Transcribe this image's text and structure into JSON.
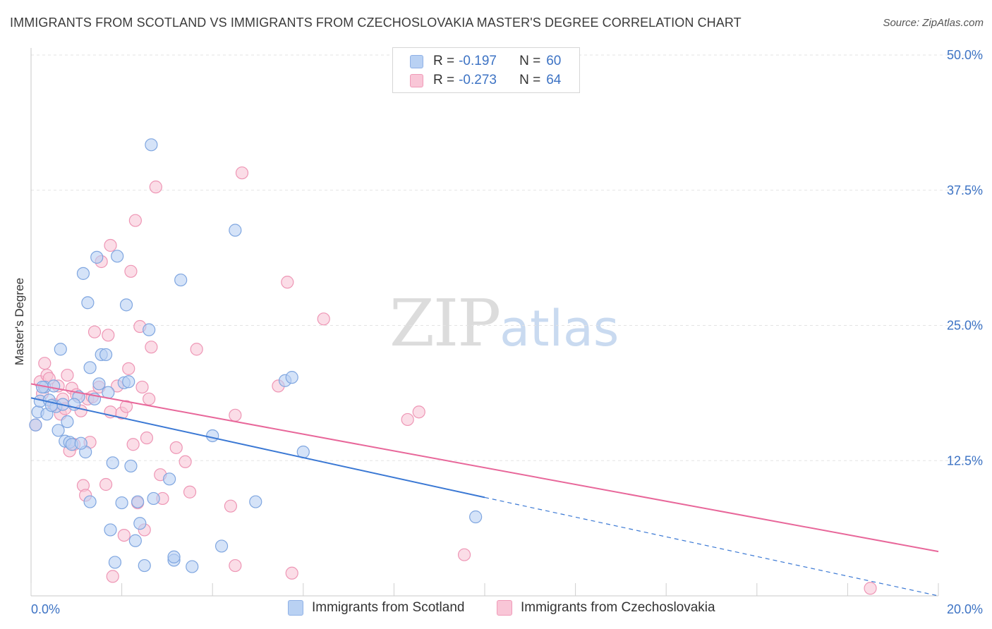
{
  "title": "IMMIGRANTS FROM SCOTLAND VS IMMIGRANTS FROM CZECHOSLOVAKIA MASTER'S DEGREE CORRELATION CHART",
  "source": "Source: ZipAtlas.com",
  "watermark": {
    "zip": "ZIP",
    "atlas": "atlas"
  },
  "legend": {
    "rows": [
      {
        "r_label": "R =",
        "r_value": "-0.197",
        "n_label": "N =",
        "n_value": "60"
      },
      {
        "r_label": "R =",
        "r_value": "-0.273",
        "n_label": "N =",
        "n_value": "64"
      }
    ]
  },
  "colors": {
    "blue_fill": "#b9d1f3",
    "blue_stroke": "#7fa6e0",
    "blue_line": "#3a78d4",
    "pink_fill": "#f9c6d7",
    "pink_stroke": "#ee96b5",
    "pink_line": "#e8679a",
    "grid": "#e3e3e3",
    "tick_label": "#3d73c4"
  },
  "chart_data": {
    "type": "scatter",
    "title": "IMMIGRANTS FROM SCOTLAND VS IMMIGRANTS FROM CZECHOSLOVAKIA MASTER'S DEGREE CORRELATION CHART",
    "xlabel": "",
    "ylabel": "Master's Degree",
    "xlim": [
      0,
      20
    ],
    "ylim": [
      0,
      50
    ],
    "x_tick_labels": [
      {
        "value": 0,
        "label": "0.0%"
      },
      {
        "value": 20,
        "label": "20.0%"
      }
    ],
    "y_tick_labels": [
      {
        "value": 12.5,
        "label": "12.5%"
      },
      {
        "value": 25,
        "label": "25.0%"
      },
      {
        "value": 37.5,
        "label": "37.5%"
      },
      {
        "value": 50,
        "label": "50.0%"
      }
    ],
    "grid": true,
    "legend_position": "top-center",
    "series": [
      {
        "name": "Immigrants from Scotland",
        "color": "blue",
        "points": [
          [
            0.1,
            15.8
          ],
          [
            0.15,
            17.0
          ],
          [
            0.2,
            18.0
          ],
          [
            0.3,
            19.3
          ],
          [
            0.35,
            16.8
          ],
          [
            0.4,
            18.1
          ],
          [
            0.5,
            19.4
          ],
          [
            0.55,
            17.5
          ],
          [
            0.6,
            15.3
          ],
          [
            0.65,
            22.8
          ],
          [
            0.7,
            17.7
          ],
          [
            0.75,
            14.3
          ],
          [
            0.8,
            16.1
          ],
          [
            0.85,
            14.2
          ],
          [
            0.9,
            14.0
          ],
          [
            1.05,
            18.4
          ],
          [
            1.15,
            29.8
          ],
          [
            1.2,
            13.3
          ],
          [
            1.25,
            27.1
          ],
          [
            1.3,
            21.1
          ],
          [
            1.3,
            8.7
          ],
          [
            1.4,
            18.2
          ],
          [
            1.5,
            19.6
          ],
          [
            1.45,
            31.3
          ],
          [
            1.55,
            22.3
          ],
          [
            1.65,
            22.3
          ],
          [
            1.7,
            18.8
          ],
          [
            1.75,
            6.1
          ],
          [
            1.8,
            12.3
          ],
          [
            1.85,
            3.1
          ],
          [
            1.9,
            31.4
          ],
          [
            2.0,
            8.6
          ],
          [
            2.05,
            19.7
          ],
          [
            2.1,
            26.9
          ],
          [
            2.2,
            12.0
          ],
          [
            2.3,
            5.1
          ],
          [
            2.35,
            8.7
          ],
          [
            2.4,
            6.7
          ],
          [
            2.5,
            2.8
          ],
          [
            2.6,
            24.6
          ],
          [
            2.65,
            41.7
          ],
          [
            2.7,
            9.0
          ],
          [
            3.05,
            10.8
          ],
          [
            3.15,
            3.3
          ],
          [
            3.15,
            3.6
          ],
          [
            3.3,
            29.2
          ],
          [
            3.55,
            2.7
          ],
          [
            4.0,
            14.8
          ],
          [
            4.2,
            4.6
          ],
          [
            4.5,
            33.8
          ],
          [
            4.95,
            8.7
          ],
          [
            5.6,
            19.9
          ],
          [
            5.75,
            20.2
          ],
          [
            6.0,
            13.3
          ],
          [
            9.8,
            7.3
          ],
          [
            0.25,
            19.3
          ],
          [
            0.45,
            17.6
          ],
          [
            1.1,
            14.1
          ],
          [
            0.95,
            17.7
          ],
          [
            2.15,
            19.8
          ]
        ]
      },
      {
        "name": "Immigrants from Czechoslovakia",
        "color": "pink",
        "points": [
          [
            0.1,
            15.8
          ],
          [
            0.2,
            19.8
          ],
          [
            0.25,
            18.7
          ],
          [
            0.3,
            21.5
          ],
          [
            0.35,
            20.4
          ],
          [
            0.4,
            20.1
          ],
          [
            0.5,
            17.7
          ],
          [
            0.6,
            19.4
          ],
          [
            0.65,
            16.8
          ],
          [
            0.7,
            18.2
          ],
          [
            0.75,
            17.3
          ],
          [
            0.8,
            20.4
          ],
          [
            0.85,
            13.4
          ],
          [
            0.9,
            19.2
          ],
          [
            0.95,
            14.0
          ],
          [
            1.0,
            18.6
          ],
          [
            1.1,
            17.1
          ],
          [
            1.15,
            10.2
          ],
          [
            1.2,
            9.3
          ],
          [
            1.25,
            18.2
          ],
          [
            1.3,
            14.2
          ],
          [
            1.35,
            18.4
          ],
          [
            1.4,
            24.4
          ],
          [
            1.5,
            19.3
          ],
          [
            1.55,
            30.9
          ],
          [
            1.65,
            10.3
          ],
          [
            1.7,
            24.1
          ],
          [
            1.75,
            17.0
          ],
          [
            1.75,
            32.4
          ],
          [
            1.8,
            1.8
          ],
          [
            1.9,
            19.4
          ],
          [
            2.0,
            16.9
          ],
          [
            2.05,
            5.6
          ],
          [
            2.1,
            17.5
          ],
          [
            2.15,
            21.0
          ],
          [
            2.2,
            30.0
          ],
          [
            2.25,
            14.0
          ],
          [
            2.3,
            34.7
          ],
          [
            2.35,
            8.6
          ],
          [
            2.4,
            24.9
          ],
          [
            2.45,
            19.3
          ],
          [
            2.5,
            6.1
          ],
          [
            2.55,
            14.6
          ],
          [
            2.6,
            18.2
          ],
          [
            2.65,
            23.0
          ],
          [
            2.75,
            37.8
          ],
          [
            2.85,
            11.2
          ],
          [
            2.9,
            9.0
          ],
          [
            3.2,
            13.7
          ],
          [
            3.4,
            12.4
          ],
          [
            3.5,
            9.6
          ],
          [
            3.65,
            22.8
          ],
          [
            4.4,
            8.3
          ],
          [
            4.5,
            16.7
          ],
          [
            4.5,
            2.8
          ],
          [
            4.65,
            39.1
          ],
          [
            5.45,
            19.4
          ],
          [
            5.65,
            29.0
          ],
          [
            5.75,
            2.1
          ],
          [
            6.45,
            25.6
          ],
          [
            8.3,
            16.3
          ],
          [
            8.55,
            17.0
          ],
          [
            9.55,
            3.8
          ],
          [
            18.5,
            0.7
          ]
        ]
      }
    ],
    "trendlines": [
      {
        "series": "Immigrants from Scotland",
        "x_start": 0,
        "y_start": 18.3,
        "x_solid_end": 10.0,
        "y_solid_end": 9.1,
        "x_end": 20,
        "y_end": 0.0
      },
      {
        "series": "Immigrants from Czechoslovakia",
        "x_start": 0,
        "y_start": 19.6,
        "x_end": 20,
        "y_end": 4.1
      }
    ]
  },
  "bottom_legend": [
    {
      "label": "Immigrants from Scotland"
    },
    {
      "label": "Immigrants from Czechoslovakia"
    }
  ]
}
